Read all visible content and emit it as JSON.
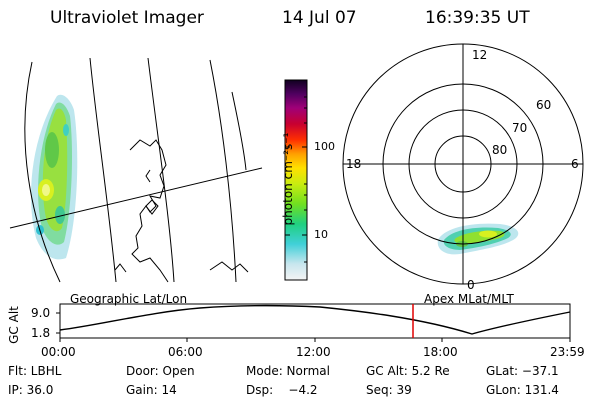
{
  "header": {
    "title": "Ultraviolet Imager",
    "date": "14 Jul 07",
    "time": "16:39:35 UT"
  },
  "colorbar": {
    "unit_label": "photon cm⁻²s⁻¹",
    "ticks": [
      "100",
      "10"
    ]
  },
  "polar_plot": {
    "lat_labels": [
      "60",
      "70",
      "80"
    ],
    "mlt_labels": {
      "top": "12",
      "right": "6",
      "bottom": "0",
      "left": "18"
    }
  },
  "panels": {
    "left_label": "Geographic Lat/Lon",
    "right_label": "Apex MLat/MLT"
  },
  "altitude_plot": {
    "ylabel": "GC Alt",
    "y_ticks": [
      "9.0",
      "1.8"
    ],
    "x_ticks": [
      "00:00",
      "06:00",
      "12:00",
      "18:00",
      "23:59"
    ],
    "marker_time": "16:39",
    "marker_color": "#e00000"
  },
  "status": {
    "row1": {
      "flt": "Flt: LBHL",
      "door": "Door: Open",
      "mode": "Mode: Normal",
      "gc_alt": "GC Alt: 5.2 Re",
      "glat": "GLat: −37.1"
    },
    "row2": {
      "ip": "IP: 36.0",
      "gain": "Gain: 14",
      "dsp": "Dsp:    −4.2",
      "seq": "Seq: 39",
      "glon": "GLon: 131.4"
    }
  }
}
